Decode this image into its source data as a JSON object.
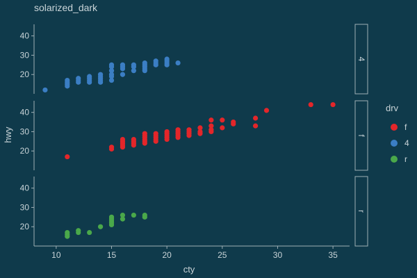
{
  "chart_data": {
    "type": "scatter",
    "title": "solarized_dark",
    "xlabel": "cty",
    "ylabel": "hwy",
    "xlim": [
      8,
      36.5
    ],
    "ylim": [
      10,
      46
    ],
    "x_ticks": [
      10,
      15,
      20,
      25,
      30,
      35
    ],
    "y_ticks": [
      20,
      30,
      40
    ],
    "grid": false,
    "legend": {
      "title": "drv",
      "placement": "right",
      "entries": [
        {
          "label": "f",
          "color": "#e3262a"
        },
        {
          "label": "4",
          "color": "#3b7ec4"
        },
        {
          "label": "r",
          "color": "#4aa84a"
        }
      ]
    },
    "facets": [
      {
        "strip": "4",
        "color": "#3b7ec4",
        "points": [
          [
            9,
            12
          ],
          [
            11,
            14
          ],
          [
            11,
            15
          ],
          [
            11,
            16
          ],
          [
            11,
            17
          ],
          [
            12,
            16
          ],
          [
            12,
            17
          ],
          [
            12,
            18
          ],
          [
            13,
            16
          ],
          [
            13,
            17
          ],
          [
            13,
            18
          ],
          [
            13,
            19
          ],
          [
            14,
            16
          ],
          [
            14,
            17
          ],
          [
            14,
            18
          ],
          [
            14,
            19
          ],
          [
            14,
            20
          ],
          [
            15,
            17
          ],
          [
            15,
            19
          ],
          [
            15,
            20
          ],
          [
            15,
            22
          ],
          [
            15,
            24
          ],
          [
            15,
            25
          ],
          [
            16,
            20
          ],
          [
            16,
            23
          ],
          [
            16,
            24
          ],
          [
            16,
            25
          ],
          [
            17,
            22
          ],
          [
            17,
            24
          ],
          [
            17,
            25
          ],
          [
            18,
            22
          ],
          [
            18,
            23
          ],
          [
            18,
            24
          ],
          [
            18,
            25
          ],
          [
            18,
            26
          ],
          [
            19,
            25
          ],
          [
            19,
            26
          ],
          [
            19,
            27
          ],
          [
            20,
            25
          ],
          [
            20,
            26
          ],
          [
            20,
            27
          ],
          [
            20,
            28
          ],
          [
            21,
            26
          ]
        ]
      },
      {
        "strip": "f",
        "color": "#e3262a",
        "points": [
          [
            11,
            17
          ],
          [
            15,
            21
          ],
          [
            15,
            22
          ],
          [
            16,
            22
          ],
          [
            16,
            23
          ],
          [
            16,
            24
          ],
          [
            16,
            25
          ],
          [
            16,
            26
          ],
          [
            17,
            23
          ],
          [
            17,
            24
          ],
          [
            17,
            25
          ],
          [
            17,
            26
          ],
          [
            18,
            24
          ],
          [
            18,
            25
          ],
          [
            18,
            26
          ],
          [
            18,
            27
          ],
          [
            18,
            28
          ],
          [
            18,
            29
          ],
          [
            19,
            25
          ],
          [
            19,
            26
          ],
          [
            19,
            27
          ],
          [
            19,
            28
          ],
          [
            19,
            29
          ],
          [
            20,
            26
          ],
          [
            20,
            27
          ],
          [
            20,
            28
          ],
          [
            20,
            29
          ],
          [
            20,
            30
          ],
          [
            21,
            27
          ],
          [
            21,
            28
          ],
          [
            21,
            29
          ],
          [
            21,
            30
          ],
          [
            21,
            31
          ],
          [
            22,
            28
          ],
          [
            22,
            29
          ],
          [
            22,
            30
          ],
          [
            22,
            31
          ],
          [
            23,
            29
          ],
          [
            23,
            30
          ],
          [
            23,
            32
          ],
          [
            24,
            30
          ],
          [
            24,
            31
          ],
          [
            24,
            33
          ],
          [
            24,
            36
          ],
          [
            25,
            32
          ],
          [
            25,
            36
          ],
          [
            26,
            34
          ],
          [
            26,
            35
          ],
          [
            28,
            33
          ],
          [
            28,
            37
          ],
          [
            29,
            41
          ],
          [
            33,
            44
          ],
          [
            35,
            44
          ]
        ]
      },
      {
        "strip": "r",
        "color": "#4aa84a",
        "points": [
          [
            11,
            15
          ],
          [
            11,
            16
          ],
          [
            11,
            17
          ],
          [
            12,
            17
          ],
          [
            12,
            18
          ],
          [
            13,
            17
          ],
          [
            14,
            20
          ],
          [
            15,
            21
          ],
          [
            15,
            22
          ],
          [
            15,
            23
          ],
          [
            15,
            24
          ],
          [
            15,
            25
          ],
          [
            16,
            24
          ],
          [
            16,
            26
          ],
          [
            17,
            26
          ],
          [
            18,
            25
          ],
          [
            18,
            26
          ]
        ]
      }
    ]
  }
}
